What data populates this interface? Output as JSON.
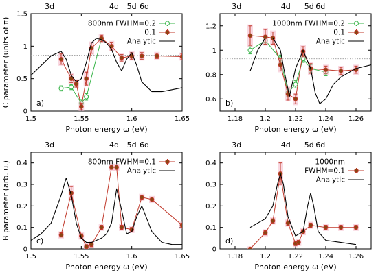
{
  "chart_data": [
    {
      "panel": "a)",
      "type": "line",
      "xlabel": "Photon energy ω (eV)",
      "ylabel": "C parameter (units of π)",
      "xlim": [
        1.5,
        1.65
      ],
      "ylim": [
        0,
        1.5
      ],
      "xticks": [
        "1.5",
        "1.55",
        "1.6",
        "1.65"
      ],
      "yticks": [
        "0",
        "0.5",
        "1",
        "1.5"
      ],
      "top_labels": [
        "3d",
        "4d",
        "5d",
        "6d"
      ],
      "top_positions": [
        1.5185,
        1.5825,
        1.6,
        1.6125
      ],
      "dotted_level": 0.86,
      "legend": {
        "placement": "top-right",
        "title": "800nm FWHM=0.2",
        "items": [
          "0.1",
          "Analytic"
        ]
      },
      "series": [
        {
          "name": "0.2",
          "color": "#39b54a",
          "marker": "open-circle",
          "x": [
            1.53,
            1.54,
            1.55,
            1.555,
            1.57
          ],
          "y": [
            0.35,
            0.37,
            0.12,
            0.22,
            1.12
          ],
          "err": [
            0.04,
            0.04,
            0.05,
            0.05,
            0.03
          ]
        },
        {
          "name": "0.1",
          "color": "#c0392b",
          "marker": "filled-circle",
          "x": [
            1.53,
            1.54,
            1.545,
            1.55,
            1.555,
            1.56,
            1.57,
            1.58,
            1.59,
            1.6,
            1.61,
            1.625,
            1.65
          ],
          "y": [
            0.8,
            0.5,
            0.42,
            0.07,
            0.5,
            0.97,
            1.12,
            1.0,
            0.82,
            0.85,
            0.85,
            0.85,
            0.84
          ],
          "err": [
            0.08,
            0.06,
            0.05,
            0.05,
            0.1,
            0.08,
            0.05,
            0.06,
            0.05,
            0.05,
            0.05,
            0.04,
            0.04
          ]
        },
        {
          "name": "Analytic",
          "color": "#000000",
          "marker": "none",
          "x": [
            1.5,
            1.51,
            1.52,
            1.53,
            1.535,
            1.54,
            1.545,
            1.55,
            1.555,
            1.56,
            1.565,
            1.57,
            1.575,
            1.58,
            1.585,
            1.59,
            1.595,
            1.6,
            1.605,
            1.61,
            1.62,
            1.63,
            1.64,
            1.65
          ],
          "y": [
            0.55,
            0.7,
            0.85,
            0.92,
            0.8,
            0.55,
            0.45,
            0.5,
            0.75,
            1.05,
            1.12,
            1.1,
            1.05,
            0.95,
            0.75,
            0.62,
            0.8,
            0.9,
            0.7,
            0.45,
            0.3,
            0.3,
            0.33,
            0.36
          ]
        }
      ]
    },
    {
      "panel": "b)",
      "type": "line",
      "xlabel": "Photon energy ω (eV)",
      "ylabel": "",
      "xlim": [
        1.17,
        1.27
      ],
      "ylim": [
        0.5,
        1.3
      ],
      "xticks": [
        "1.18",
        "1.2",
        "1.22",
        "1.24",
        "1.26"
      ],
      "yticks": [
        "0.6",
        "0.8",
        "1",
        "1.2"
      ],
      "top_labels": [
        "3d",
        "4d",
        "5d",
        "6d"
      ],
      "top_positions": [
        1.181,
        1.2135,
        1.229,
        1.2365
      ],
      "dotted_level": 0.93,
      "legend": {
        "placement": "top-right",
        "title": "1000nm FWHM=0.2",
        "items": [
          "0.1",
          "Analytic"
        ]
      },
      "series": [
        {
          "name": "0.2",
          "color": "#39b54a",
          "marker": "open-circle",
          "x": [
            1.19,
            1.2,
            1.21,
            1.215,
            1.22,
            1.225,
            1.23,
            1.24
          ],
          "y": [
            1.0,
            1.08,
            0.93,
            0.65,
            0.72,
            0.93,
            0.85,
            0.82
          ],
          "err": [
            0.03,
            0.03,
            0.03,
            0.03,
            0.03,
            0.03,
            0.03,
            0.03
          ]
        },
        {
          "name": "0.1",
          "color": "#c0392b",
          "marker": "filled-circle",
          "x": [
            1.19,
            1.2,
            1.205,
            1.21,
            1.215,
            1.22,
            1.225,
            1.23,
            1.24,
            1.25,
            1.26
          ],
          "y": [
            1.12,
            1.11,
            1.1,
            0.88,
            0.64,
            0.6,
            0.99,
            0.85,
            0.84,
            0.83,
            0.84
          ],
          "err": [
            0.08,
            0.06,
            0.05,
            0.05,
            0.05,
            0.04,
            0.04,
            0.04,
            0.03,
            0.03,
            0.03
          ]
        },
        {
          "name": "Analytic",
          "color": "#000000",
          "marker": "none",
          "x": [
            1.19,
            1.195,
            1.2,
            1.205,
            1.21,
            1.213,
            1.216,
            1.22,
            1.225,
            1.23,
            1.233,
            1.236,
            1.24,
            1.245,
            1.25,
            1.26,
            1.27
          ],
          "y": [
            0.83,
            1.0,
            1.1,
            1.1,
            1.0,
            0.8,
            0.62,
            0.85,
            1.0,
            0.85,
            0.65,
            0.56,
            0.6,
            0.72,
            0.78,
            0.85,
            0.88
          ]
        }
      ]
    },
    {
      "panel": "c)",
      "type": "line",
      "xlabel": "Photon energy ω (eV)",
      "ylabel": "B parameter (arb. u.)",
      "xlim": [
        1.5,
        1.65
      ],
      "ylim": [
        0,
        0.45
      ],
      "xticks": [
        "1.5",
        "1.55",
        "1.6",
        "1.65"
      ],
      "yticks": [
        "0",
        "0.1",
        "0.2",
        "0.3",
        "0.4"
      ],
      "top_labels": [
        "3d",
        "4d",
        "5d",
        "6d"
      ],
      "top_positions": [
        1.5185,
        1.5825,
        1.6,
        1.6125
      ],
      "legend": {
        "placement": "top-right",
        "title": "800nm FWHM=0.1",
        "items": [
          "Analytic"
        ]
      },
      "series": [
        {
          "name": "800nm FWHM=0.1",
          "color": "#c0392b",
          "marker": "filled-circle",
          "x": [
            1.53,
            1.54,
            1.55,
            1.555,
            1.56,
            1.57,
            1.58,
            1.585,
            1.59,
            1.6,
            1.61,
            1.62,
            1.65
          ],
          "y": [
            0.065,
            0.26,
            0.06,
            0.01,
            0.02,
            0.1,
            0.38,
            0.38,
            0.1,
            0.09,
            0.24,
            0.23,
            0.11
          ],
          "err": [
            0.01,
            0.03,
            0.01,
            0.01,
            0.01,
            0.01,
            0.01,
            0.01,
            0.01,
            0.01,
            0.01,
            0.01,
            0.01
          ]
        },
        {
          "name": "Analytic",
          "color": "#000000",
          "marker": "none",
          "x": [
            1.5,
            1.51,
            1.52,
            1.53,
            1.535,
            1.54,
            1.545,
            1.55,
            1.555,
            1.56,
            1.565,
            1.57,
            1.575,
            1.58,
            1.585,
            1.59,
            1.595,
            1.6,
            1.605,
            1.61,
            1.62,
            1.63,
            1.64,
            1.65
          ],
          "y": [
            0.04,
            0.07,
            0.12,
            0.25,
            0.33,
            0.25,
            0.12,
            0.05,
            0.03,
            0.03,
            0.04,
            0.05,
            0.07,
            0.12,
            0.28,
            0.18,
            0.07,
            0.08,
            0.15,
            0.2,
            0.08,
            0.03,
            0.02,
            0.02
          ]
        }
      ]
    },
    {
      "panel": "d)",
      "type": "line",
      "xlabel": "Photon energy ω (eV)",
      "ylabel": "",
      "xlim": [
        1.17,
        1.27
      ],
      "ylim": [
        0,
        0.45
      ],
      "xticks": [
        "1.18",
        "1.2",
        "1.22",
        "1.24",
        "1.26"
      ],
      "yticks": [
        "0",
        "0.1",
        "0.2",
        "0.3",
        "0.4"
      ],
      "top_labels": [
        "3d",
        "4d",
        "5d",
        "6d"
      ],
      "top_positions": [
        1.181,
        1.2135,
        1.229,
        1.2365
      ],
      "legend": {
        "placement": "top-right",
        "title": "1000nm",
        "items": [
          "FWHM=0.1",
          "Analytic"
        ]
      },
      "series": [
        {
          "name": "FWHM=0.1",
          "color": "#c0392b",
          "marker": "filled-circle",
          "x": [
            1.19,
            1.2,
            1.205,
            1.21,
            1.215,
            1.22,
            1.222,
            1.225,
            1.23,
            1.24,
            1.25,
            1.26
          ],
          "y": [
            0.0,
            0.075,
            0.13,
            0.35,
            0.12,
            0.025,
            0.03,
            0.08,
            0.11,
            0.1,
            0.1,
            0.1
          ],
          "err": [
            0.005,
            0.01,
            0.01,
            0.05,
            0.01,
            0.01,
            0.01,
            0.01,
            0.01,
            0.01,
            0.01,
            0.01
          ]
        },
        {
          "name": "Analytic",
          "color": "#000000",
          "marker": "none",
          "x": [
            1.19,
            1.2,
            1.205,
            1.208,
            1.21,
            1.212,
            1.215,
            1.22,
            1.225,
            1.228,
            1.23,
            1.232,
            1.235,
            1.24,
            1.25,
            1.26
          ],
          "y": [
            0.1,
            0.14,
            0.2,
            0.3,
            0.35,
            0.3,
            0.15,
            0.06,
            0.08,
            0.2,
            0.26,
            0.2,
            0.08,
            0.04,
            0.03,
            0.02
          ]
        }
      ]
    }
  ]
}
